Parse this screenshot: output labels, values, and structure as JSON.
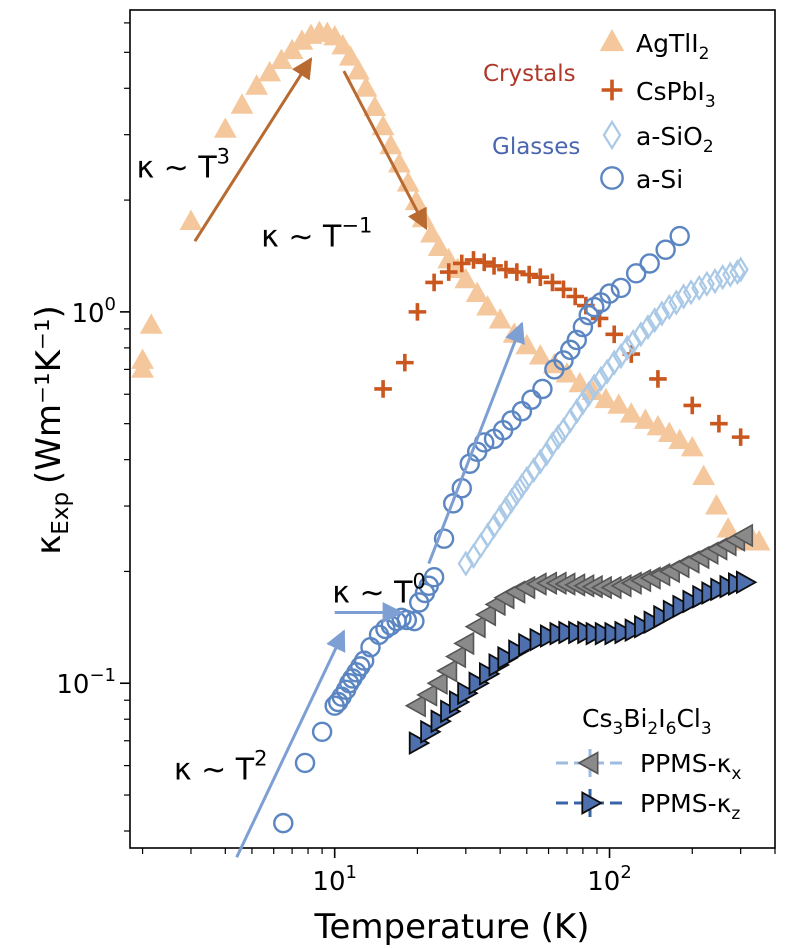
{
  "chart_data": {
    "type": "scatter",
    "xscale": "log",
    "yscale": "log",
    "xlim": [
      1.8,
      400
    ],
    "ylim": [
      0.036,
      6.5
    ],
    "xlabel": "Temperature (K)",
    "ylabel_base": "κ",
    "ylabel_sub": "Exp",
    "ylabel_unit": "(Wm⁻¹K⁻¹)",
    "x_ticks": [
      {
        "value": 10,
        "base": "10",
        "exp": "1"
      },
      {
        "value": 100,
        "base": "10",
        "exp": "2"
      }
    ],
    "y_ticks": [
      {
        "value": 0.1,
        "base": "10",
        "exp": "−1"
      },
      {
        "value": 1,
        "base": "10",
        "exp": "0"
      }
    ],
    "colors": {
      "agtli2": "#f5c79c",
      "cspbi3": "#c9571e",
      "asio2": "#a9c9e6",
      "asi": "#5b86c2",
      "kx_fill": "#8a8a8a",
      "kx_edge": "#555555",
      "kx_line": "#9fbbe0",
      "kz_fill": "#4e6fae",
      "kz_edge": "#0d0d0d",
      "kz_line": "#3a64a8",
      "crystals_label": "#b0382a",
      "glasses_label": "#4a66b0",
      "arrow_orange": "#b86a30",
      "arrow_blue": "#7d9fd3"
    },
    "series": [
      {
        "name": "AgTlI2",
        "legend": "AgTlI",
        "legend_sub": "2",
        "marker": "triangle-up",
        "color_key": "agtli2",
        "x": [
          2.0,
          2.0,
          2.15,
          3.0,
          4.0,
          4.6,
          5.2,
          5.8,
          6.4,
          7.0,
          7.6,
          8.2,
          8.8,
          9.4,
          10.0,
          10.7,
          11.4,
          12.2,
          13.0,
          14.0,
          15.0,
          16.0,
          17.2,
          18.5,
          19.8,
          21.0,
          22.5,
          24.0,
          26.0,
          28.0,
          30.0,
          33.0,
          36.0,
          40.0,
          45.0,
          50.0,
          56.0,
          63.0,
          70.0,
          78.0,
          87.0,
          97.0,
          108.0,
          120.0,
          135.0,
          150.0,
          165.0,
          180.0,
          200.0,
          220.0,
          245.0,
          270.0,
          300.0,
          330.0,
          350.0
        ],
        "y": [
          0.7,
          0.74,
          0.92,
          1.75,
          3.1,
          3.6,
          4.05,
          4.4,
          4.75,
          5.05,
          5.35,
          5.55,
          5.65,
          5.62,
          5.5,
          5.2,
          4.85,
          4.45,
          4.0,
          3.55,
          3.15,
          2.8,
          2.5,
          2.22,
          1.98,
          1.78,
          1.62,
          1.49,
          1.38,
          1.3,
          1.22,
          1.12,
          1.03,
          0.95,
          0.87,
          0.81,
          0.76,
          0.72,
          0.68,
          0.64,
          0.61,
          0.58,
          0.56,
          0.53,
          0.51,
          0.49,
          0.47,
          0.45,
          0.43,
          0.36,
          0.3,
          0.26,
          0.24,
          0.245,
          0.24
        ]
      },
      {
        "name": "CsPbI3",
        "legend": "CsPbI",
        "legend_sub": "3",
        "marker": "plus",
        "color_key": "cspbi3",
        "x": [
          15,
          18,
          20,
          23,
          26,
          29,
          32,
          35,
          38,
          42,
          46,
          51,
          56,
          62,
          68,
          75,
          82,
          92,
          104,
          120,
          150,
          200,
          250,
          300
        ],
        "y": [
          0.62,
          0.73,
          1.0,
          1.2,
          1.28,
          1.35,
          1.38,
          1.36,
          1.33,
          1.3,
          1.28,
          1.26,
          1.24,
          1.2,
          1.15,
          1.1,
          1.04,
          0.96,
          0.87,
          0.77,
          0.66,
          0.56,
          0.5,
          0.46
        ]
      },
      {
        "name": "a-SiO2",
        "legend": "a-SiO",
        "legend_sub": "2",
        "marker": "diamond-open",
        "color_key": "asio2",
        "x": [
          30,
          32,
          34,
          36,
          38,
          40,
          42,
          44,
          46,
          48,
          50,
          53,
          56,
          59,
          62,
          65,
          68,
          72,
          76,
          80,
          84,
          88,
          93,
          98,
          104,
          110,
          116,
          122,
          130,
          138,
          146,
          155,
          165,
          175,
          186,
          198,
          212,
          226,
          242,
          258,
          275,
          292,
          300
        ],
        "y": [
          0.21,
          0.22,
          0.235,
          0.25,
          0.265,
          0.28,
          0.295,
          0.31,
          0.325,
          0.34,
          0.355,
          0.375,
          0.395,
          0.415,
          0.44,
          0.46,
          0.48,
          0.51,
          0.54,
          0.57,
          0.6,
          0.63,
          0.66,
          0.69,
          0.73,
          0.76,
          0.8,
          0.83,
          0.87,
          0.91,
          0.95,
          0.99,
          1.03,
          1.06,
          1.1,
          1.13,
          1.16,
          1.19,
          1.21,
          1.24,
          1.26,
          1.28,
          1.3
        ]
      },
      {
        "name": "a-Si",
        "legend": "a-Si",
        "legend_sub": "",
        "marker": "circle-open",
        "color_key": "asi",
        "x": [
          6.5,
          7.8,
          9.0,
          10.0,
          10.3,
          10.6,
          11.0,
          11.3,
          11.6,
          12.0,
          12.4,
          12.8,
          13.5,
          14.5,
          15.3,
          16.0,
          16.8,
          17.5,
          18.3,
          19.5,
          20.3,
          21.3,
          22.0,
          23.0,
          25.0,
          27.0,
          29.0,
          31.0,
          33.0,
          35.0,
          38.0,
          41.0,
          44.0,
          48.0,
          52.0,
          57.0,
          63.0,
          68.0,
          72.0,
          76.0,
          80.0,
          84.0,
          88.0,
          93.0,
          100.0,
          110.0,
          125.0,
          140.0,
          160.0,
          180.0
        ],
        "y": [
          0.042,
          0.061,
          0.074,
          0.087,
          0.089,
          0.092,
          0.096,
          0.1,
          0.103,
          0.107,
          0.111,
          0.115,
          0.125,
          0.135,
          0.14,
          0.143,
          0.147,
          0.15,
          0.148,
          0.147,
          0.165,
          0.175,
          0.183,
          0.193,
          0.245,
          0.305,
          0.335,
          0.39,
          0.42,
          0.445,
          0.455,
          0.48,
          0.51,
          0.54,
          0.58,
          0.62,
          0.7,
          0.74,
          0.79,
          0.84,
          0.91,
          0.98,
          1.03,
          1.06,
          1.12,
          1.16,
          1.27,
          1.35,
          1.47,
          1.6
        ]
      },
      {
        "name": "PPMS-κx",
        "legend": "PPMS-κ",
        "legend_sub": "x",
        "marker": "triangle-left",
        "color_key": "kx",
        "x": [
          20,
          22,
          24,
          26,
          28,
          30,
          33,
          36,
          39,
          42,
          46,
          50,
          55,
          60,
          65,
          70,
          76,
          82,
          88,
          95,
          103,
          112,
          122,
          132,
          143,
          155,
          168,
          182,
          198,
          215,
          232,
          250,
          270,
          290,
          310
        ],
        "y": [
          0.087,
          0.093,
          0.1,
          0.108,
          0.118,
          0.128,
          0.142,
          0.153,
          0.163,
          0.17,
          0.176,
          0.181,
          0.185,
          0.186,
          0.186,
          0.185,
          0.184,
          0.183,
          0.182,
          0.181,
          0.181,
          0.183,
          0.186,
          0.189,
          0.192,
          0.196,
          0.2,
          0.206,
          0.212,
          0.218,
          0.224,
          0.23,
          0.236,
          0.243,
          0.25
        ]
      },
      {
        "name": "PPMS-κz",
        "legend": "PPMS-κ",
        "legend_sub": "z",
        "marker": "triangle-right",
        "color_key": "kz",
        "x": [
          20,
          22,
          24,
          26,
          28,
          30,
          33,
          36,
          39,
          42,
          46,
          50,
          55,
          60,
          65,
          70,
          76,
          82,
          88,
          95,
          103,
          112,
          122,
          132,
          143,
          155,
          168,
          182,
          198,
          215,
          232,
          250,
          270,
          290,
          310
        ],
        "y": [
          0.069,
          0.074,
          0.079,
          0.084,
          0.089,
          0.094,
          0.1,
          0.106,
          0.112,
          0.117,
          0.122,
          0.127,
          0.131,
          0.134,
          0.136,
          0.137,
          0.137,
          0.137,
          0.136,
          0.136,
          0.136,
          0.137,
          0.139,
          0.142,
          0.146,
          0.151,
          0.156,
          0.161,
          0.166,
          0.171,
          0.175,
          0.179,
          0.182,
          0.185,
          0.187
        ]
      }
    ],
    "group_labels": {
      "crystals": "Crystals",
      "glasses": "Glasses",
      "cs_compound": [
        "Cs",
        "3",
        "Bi",
        "2",
        "I",
        "6",
        "Cl",
        "3"
      ]
    },
    "annotations": [
      {
        "id": "t3",
        "base": "κ ∼ T",
        "exp": "3",
        "arrow": {
          "from": [
            3.1,
            1.55
          ],
          "to": [
            8.2,
            4.8
          ]
        },
        "color_key": "arrow_orange",
        "text_at": [
          1.9,
          2.3
        ]
      },
      {
        "id": "tm1",
        "base": "κ ∼ T",
        "exp": "−1",
        "arrow": {
          "from": [
            10.8,
            4.45
          ],
          "to": [
            21.5,
            1.68
          ]
        },
        "color_key": "arrow_orange",
        "text_at": [
          5.4,
          1.5
        ]
      },
      {
        "id": "t0",
        "base": "κ ∼ T",
        "exp": "0",
        "arrow": {
          "from": [
            10.0,
            0.155
          ],
          "to": [
            17.5,
            0.155
          ]
        },
        "color_key": "arrow_blue",
        "text_at": [
          9.8,
          0.165
        ]
      },
      {
        "id": "t2",
        "base": "κ ∼ T",
        "exp": "2",
        "arrow": {
          "from": [
            4.4,
            0.034
          ],
          "to": [
            10.8,
            0.138
          ]
        },
        "color_key": "arrow_blue",
        "text_at": [
          2.6,
          0.055
        ]
      },
      {
        "id": "slope2",
        "base": "",
        "exp": "",
        "arrow": {
          "from": [
            22.0,
            0.21
          ],
          "to": [
            48.0,
            0.93
          ]
        },
        "color_key": "arrow_blue",
        "text_at": null
      }
    ]
  }
}
